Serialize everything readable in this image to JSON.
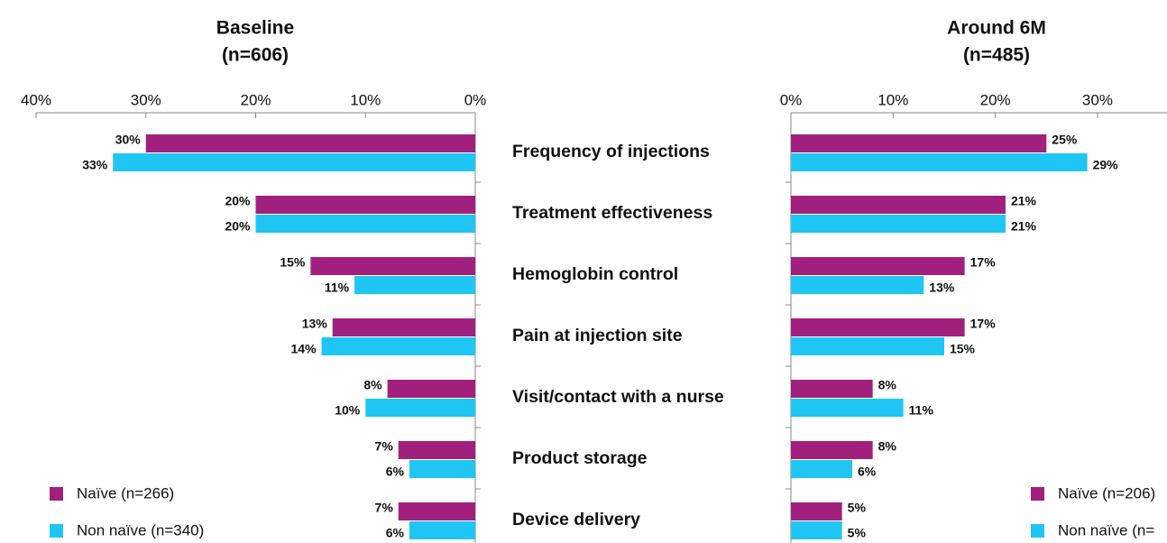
{
  "chart_data": [
    {
      "type": "bar",
      "orientation": "horizontal",
      "title": "Baseline",
      "subtitle": "(n=606)",
      "categories": [
        "Frequency of injections",
        "Treatment effectiveness",
        "Hemoglobin control",
        "Pain at injection site",
        "Visit/contact with a nurse",
        "Product storage",
        "Device delivery"
      ],
      "series": [
        {
          "name": "Naïve (n=266)",
          "color": "#a1207d",
          "values": [
            30,
            20,
            15,
            13,
            8,
            7,
            7
          ],
          "value_labels": [
            "30%",
            "20%",
            "15%",
            "13%",
            "8%",
            "7%",
            "7%"
          ]
        },
        {
          "name": "Non naïve (n=340)",
          "color": "#1fc6f3",
          "values": [
            33,
            20,
            11,
            14,
            10,
            6,
            6
          ],
          "value_labels": [
            "33%",
            "20%",
            "11%",
            "14%",
            "10%",
            "6%",
            "6%"
          ]
        }
      ],
      "xlim": [
        0,
        40
      ],
      "x_reversed": true,
      "xticks": [
        {
          "value": 40,
          "label": "40%"
        },
        {
          "value": 30,
          "label": "30%"
        },
        {
          "value": 20,
          "label": "20%"
        },
        {
          "value": 10,
          "label": "10%"
        },
        {
          "value": 0,
          "label": "0%"
        }
      ],
      "legend": "lower left"
    },
    {
      "type": "bar",
      "orientation": "horizontal",
      "title": "Around 6M",
      "subtitle": "(n=485)",
      "series": [
        {
          "name": "Naïve (n=206)",
          "color": "#a1207d",
          "values": [
            25,
            21,
            17,
            17,
            8,
            8,
            5
          ],
          "value_labels": [
            "25%",
            "21%",
            "17%",
            "17%",
            "8%",
            "8%",
            "5%"
          ]
        },
        {
          "name": "Non naïve (n=",
          "color": "#1fc6f3",
          "values": [
            29,
            21,
            13,
            15,
            11,
            6,
            5
          ],
          "value_labels": [
            "29%",
            "21%",
            "13%",
            "15%",
            "11%",
            "6%",
            "5%"
          ]
        }
      ],
      "xlim": [
        0,
        36.8
      ],
      "x_reversed": false,
      "xticks": [
        {
          "value": 0,
          "label": "0%"
        },
        {
          "value": 10,
          "label": "10%"
        },
        {
          "value": 20,
          "label": "20%"
        },
        {
          "value": 30,
          "label": "30%"
        }
      ],
      "legend": "lower right"
    }
  ]
}
